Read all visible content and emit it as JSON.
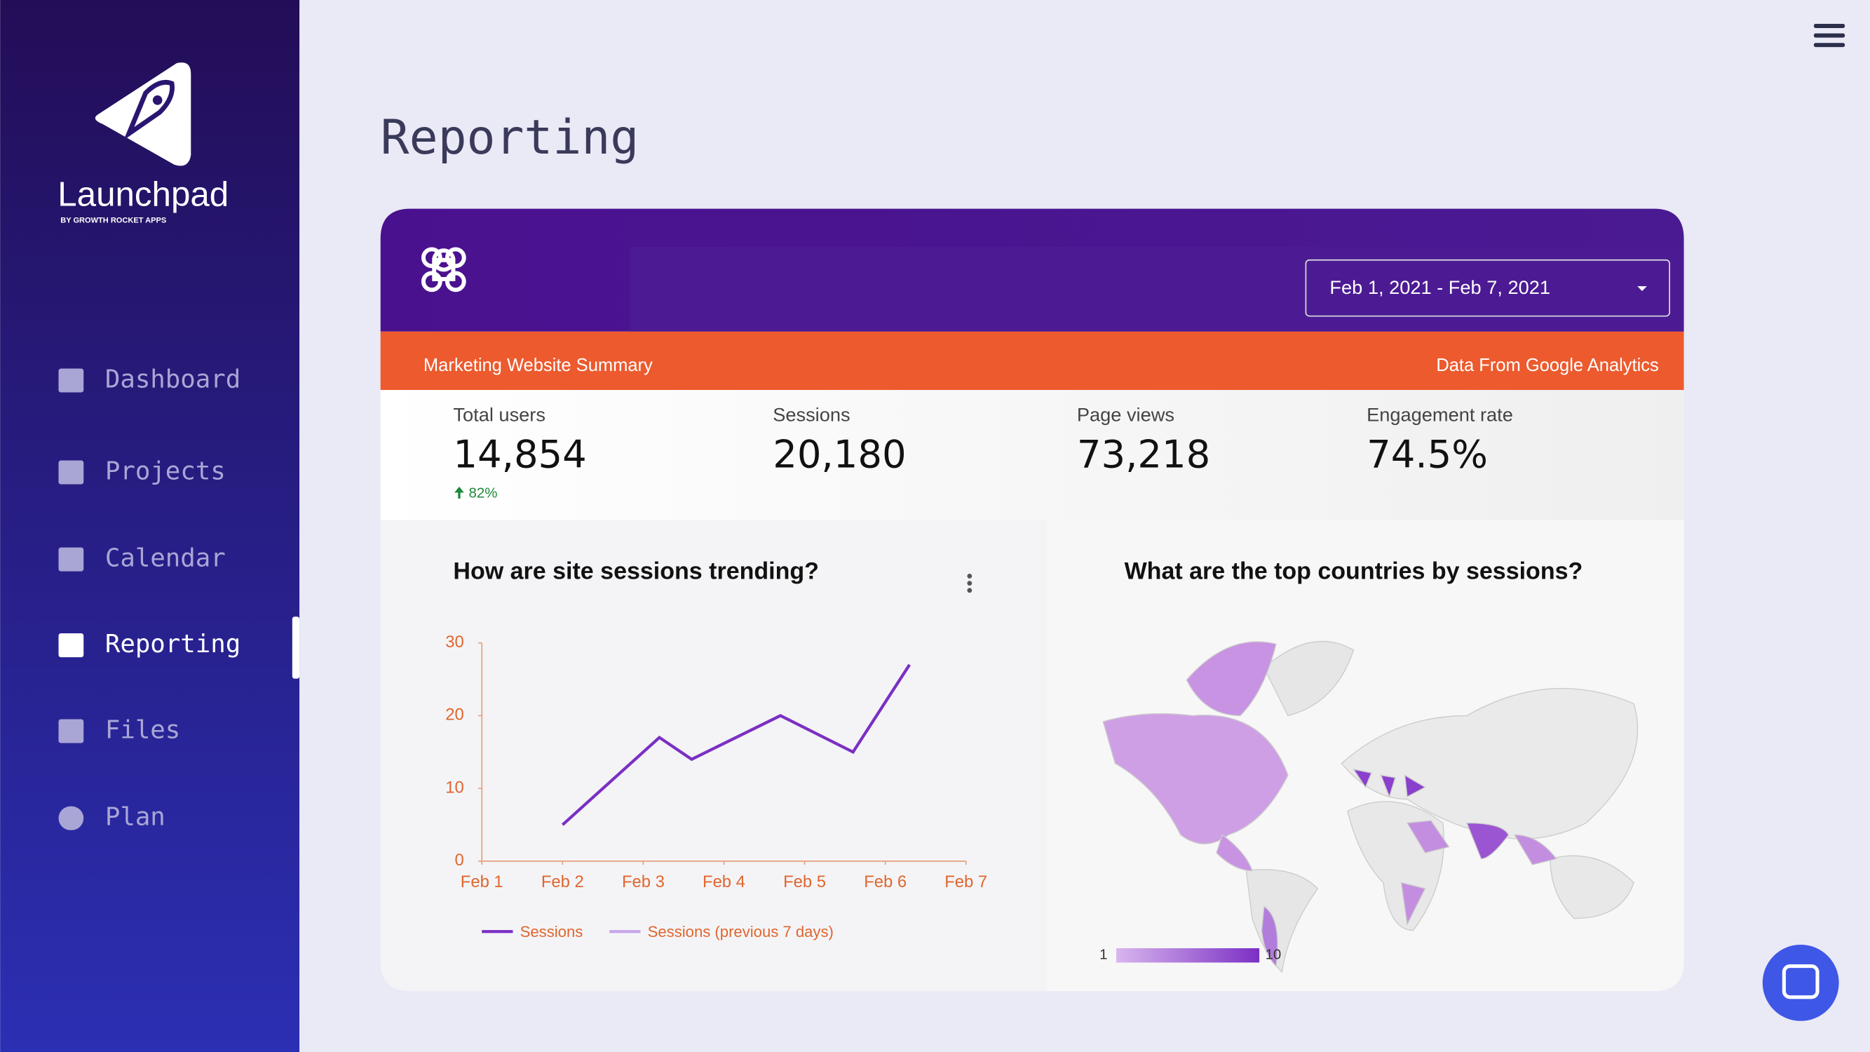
{
  "sidebar": {
    "brand": "Launchpad",
    "brand_sub": "BY GROWTH ROCKET APPS",
    "nav": [
      "Dashboard",
      "Projects",
      "Calendar",
      "Reporting",
      "Files",
      "Plan"
    ],
    "active": 3
  },
  "page": {
    "title": "Reporting"
  },
  "report": {
    "date_range": "Feb 1, 2021 - Feb 7, 2021",
    "banner_left": "Marketing Website Summary",
    "banner_right": "Data From Google Analytics",
    "metrics": [
      {
        "label": "Total users",
        "value": "14,854",
        "change": "82%"
      },
      {
        "label": "Sessions",
        "value": "20,180"
      },
      {
        "label": "Page views",
        "value": "73,218"
      },
      {
        "label": "Engagement rate",
        "value": "74.5%"
      }
    ]
  },
  "chart_data": [
    {
      "type": "line",
      "title": "How are site sessions trending?",
      "x": [
        2,
        3.2,
        3.6,
        4.7,
        5.6,
        6.3
      ],
      "series": [
        {
          "name": "Sessions",
          "color": "#7b2fc4",
          "values": [
            5,
            17,
            14,
            20,
            15,
            27
          ]
        },
        {
          "name": "Sessions (previous 7 days)",
          "color": "#c7a6ea",
          "values": [
            null,
            null,
            null,
            null,
            null,
            null
          ]
        }
      ],
      "xlim": [
        1,
        7
      ],
      "xticks": [
        {
          "value": 1,
          "label": "Feb 1"
        },
        {
          "value": 2,
          "label": "Feb 2"
        },
        {
          "value": 3,
          "label": "Feb 3"
        },
        {
          "value": 4,
          "label": "Feb 4"
        },
        {
          "value": 5,
          "label": "Feb 5"
        },
        {
          "value": 6,
          "label": "Feb 6"
        },
        {
          "value": 7,
          "label": "Feb 7"
        }
      ],
      "ylim": [
        0,
        30
      ],
      "yticks": [
        0,
        10,
        20,
        30
      ]
    },
    {
      "type": "map",
      "title": "What are the top countries by sessions?",
      "color_scale": {
        "min": 1,
        "max": 10,
        "colors": [
          "#d8b6ee",
          "#7b2fc4"
        ]
      }
    }
  ]
}
